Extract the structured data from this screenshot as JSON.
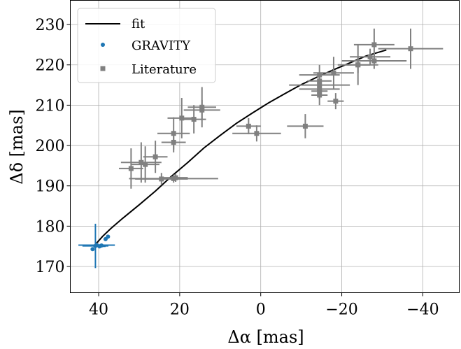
{
  "chart_data": {
    "type": "scatter",
    "title": "",
    "xlabel": "Δα [mas]",
    "ylabel": "Δδ [mas]",
    "xlim": [
      47,
      -49
    ],
    "ylim": [
      163.5,
      236
    ],
    "x_ticks": [
      40,
      20,
      0,
      -20,
      -40
    ],
    "x_tick_labels": [
      "40",
      "20",
      "0",
      "−20",
      "−40"
    ],
    "y_ticks": [
      170,
      180,
      190,
      200,
      210,
      220,
      230
    ],
    "y_tick_labels": [
      "170",
      "180",
      "190",
      "200",
      "210",
      "220",
      "230"
    ],
    "grid": true,
    "legend_position": "top-left",
    "legend": [
      {
        "label": "fit",
        "marker": "line",
        "color": "#000000"
      },
      {
        "label": "GRAVITY",
        "marker": "circle",
        "color": "#1f77b4"
      },
      {
        "label": "Literature",
        "marker": "square",
        "color": "#808080"
      }
    ],
    "colors": {
      "fit": "#000000",
      "gravity": "#1f77b4",
      "literature": "#808080"
    },
    "series": [
      {
        "name": "fit",
        "type": "line",
        "points": [
          [
            40.5,
            175.8
          ],
          [
            39,
            177.5
          ],
          [
            37,
            179.4
          ],
          [
            34,
            182.0
          ],
          [
            30,
            185.3
          ],
          [
            26,
            188.7
          ],
          [
            22,
            192.4
          ],
          [
            18,
            195.8
          ],
          [
            14,
            199.4
          ],
          [
            10,
            202.5
          ],
          [
            6,
            205.5
          ],
          [
            2,
            208.1
          ],
          [
            -2,
            210.6
          ],
          [
            -6,
            212.9
          ],
          [
            -10,
            215.1
          ],
          [
            -14,
            217.0
          ],
          [
            -18,
            218.8
          ],
          [
            -22,
            220.5
          ],
          [
            -26,
            222.2
          ],
          [
            -31,
            223.7
          ]
        ]
      },
      {
        "name": "GRAVITY",
        "type": "scatter",
        "points": [
          {
            "x": 40.8,
            "y": 175.1,
            "xerr": 3.2,
            "yerr": 5.5
          },
          {
            "x": 40.5,
            "y": 175.3,
            "xerr": 4.5,
            "yerr": 0.4
          },
          {
            "x": 39.8,
            "y": 175.0,
            "xerr": 1.5,
            "yerr": 0.5
          },
          {
            "x": 39.3,
            "y": 175.2,
            "xerr": 0.4,
            "yerr": 0.4
          },
          {
            "x": 41.5,
            "y": 174.3,
            "xerr": 0.3,
            "yerr": 0.3
          },
          {
            "x": 38.3,
            "y": 176.8,
            "xerr": 0.3,
            "yerr": 0.3
          },
          {
            "x": 37.7,
            "y": 177.4,
            "xerr": 0.3,
            "yerr": 0.3
          }
        ]
      },
      {
        "name": "Literature",
        "type": "scatter",
        "points": [
          {
            "x": 32,
            "y": 194.3,
            "xerr": 3.0,
            "yerr": 5.0
          },
          {
            "x": 29.5,
            "y": 195.8,
            "xerr": 5.0,
            "yerr": 5.0
          },
          {
            "x": 28.5,
            "y": 195.3,
            "xerr": 3.5,
            "yerr": 4.5
          },
          {
            "x": 26,
            "y": 197.2,
            "xerr": 3.0,
            "yerr": 4.0
          },
          {
            "x": 24.5,
            "y": 191.7,
            "xerr": 6.5,
            "yerr": 1.5
          },
          {
            "x": 21.5,
            "y": 191.8,
            "xerr": 11.0,
            "yerr": 1.0
          },
          {
            "x": 21,
            "y": 192.0,
            "xerr": 3.0,
            "yerr": 1.0
          },
          {
            "x": 21.5,
            "y": 200.8,
            "xerr": 3.0,
            "yerr": 2.5
          },
          {
            "x": 21.5,
            "y": 203.0,
            "xerr": 4.0,
            "yerr": 4.0
          },
          {
            "x": 19.5,
            "y": 206.8,
            "xerr": 3.5,
            "yerr": 5.0
          },
          {
            "x": 16.5,
            "y": 206.5,
            "xerr": 3.0,
            "yerr": 3.5
          },
          {
            "x": 14.5,
            "y": 208.8,
            "xerr": 4.5,
            "yerr": 2.5
          },
          {
            "x": 14.5,
            "y": 209.5,
            "xerr": 3.5,
            "yerr": 5.0
          },
          {
            "x": 3,
            "y": 204.8,
            "xerr": 3.0,
            "yerr": 2.0
          },
          {
            "x": 1,
            "y": 203.0,
            "xerr": 6.0,
            "yerr": 2.0
          },
          {
            "x": -11,
            "y": 204.8,
            "xerr": 4.5,
            "yerr": 3.0
          },
          {
            "x": -14.5,
            "y": 217.5,
            "xerr": 5.0,
            "yerr": 2.5
          },
          {
            "x": -14.5,
            "y": 216.0,
            "xerr": 3.0,
            "yerr": 2.0
          },
          {
            "x": -14.5,
            "y": 215.0,
            "xerr": 7.5,
            "yerr": 2.0
          },
          {
            "x": -14.5,
            "y": 214.0,
            "xerr": 5.0,
            "yerr": 2.5
          },
          {
            "x": -14.5,
            "y": 213.5,
            "xerr": 2.0,
            "yerr": 2.0
          },
          {
            "x": -14.5,
            "y": 212.5,
            "xerr": 2.0,
            "yerr": 2.5
          },
          {
            "x": -18,
            "y": 218.0,
            "xerr": 5.0,
            "yerr": 4.0
          },
          {
            "x": -18.5,
            "y": 211.0,
            "xerr": 2.0,
            "yerr": 2.0
          },
          {
            "x": -24,
            "y": 220.0,
            "xerr": 5.0,
            "yerr": 5.0
          },
          {
            "x": -24,
            "y": 220.0,
            "xerr": 3.0,
            "yerr": 2.0
          },
          {
            "x": -27,
            "y": 222.0,
            "xerr": 5.0,
            "yerr": 2.0
          },
          {
            "x": -28,
            "y": 225.0,
            "xerr": 5.0,
            "yerr": 4.0
          },
          {
            "x": -28,
            "y": 221.0,
            "xerr": 8.0,
            "yerr": 2.0
          },
          {
            "x": -37,
            "y": 224.0,
            "xerr": 8.0,
            "yerr": 5.0
          }
        ]
      }
    ]
  }
}
